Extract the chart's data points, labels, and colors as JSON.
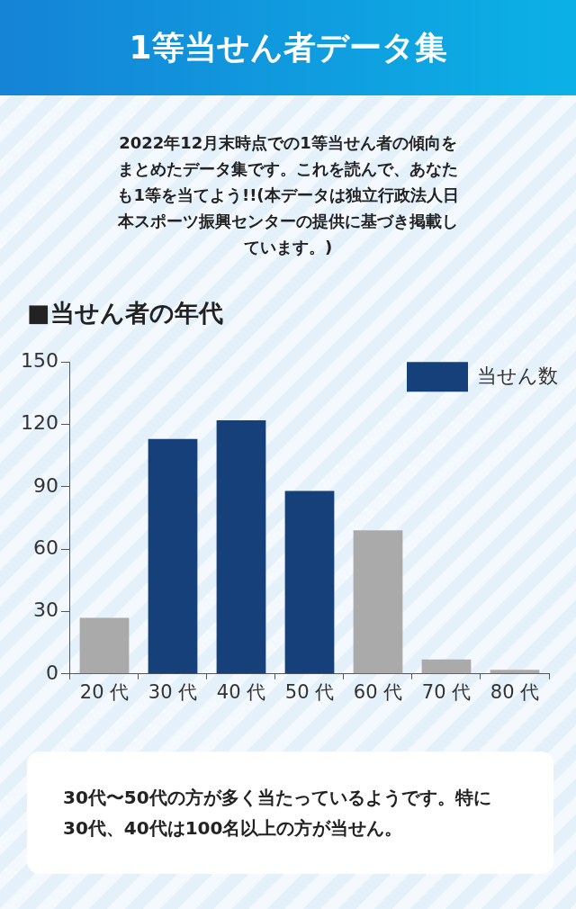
{
  "chart_data": {
    "type": "bar",
    "title": "1等当せん者データ集",
    "subtitle": "2022年12月末時点での1等当せん者の傾向をまとめたデータ集です。これを読んで、あなたも1等を当てよう!!(本データは独立行政法人日本スポーツ振興センターの提供に基づき掲載しています。)",
    "annotations": [
      "■当せん者の年代",
      "30代〜50代の方が多く当たっているようです。特に30代、40代は100名以上の方が当せん。"
    ],
    "categories": [
      "20 代",
      "30 代",
      "40 代",
      "50 代",
      "60 代",
      "70 代",
      "80 代"
    ],
    "series": [
      {
        "name": "当せん数",
        "color": "#16407a",
        "colors": [
          "#aaaaaa",
          "#16407a",
          "#16407a",
          "#16407a",
          "#aaaaaa",
          "#aaaaaa",
          "#aaaaaa"
        ],
        "values": [
          27,
          113,
          122,
          88,
          69,
          7,
          2
        ]
      }
    ],
    "ylim": [
      0,
      150
    ],
    "yticks": [
      0,
      30,
      60,
      90,
      120,
      150
    ],
    "grid": false,
    "legend": "top right"
  }
}
